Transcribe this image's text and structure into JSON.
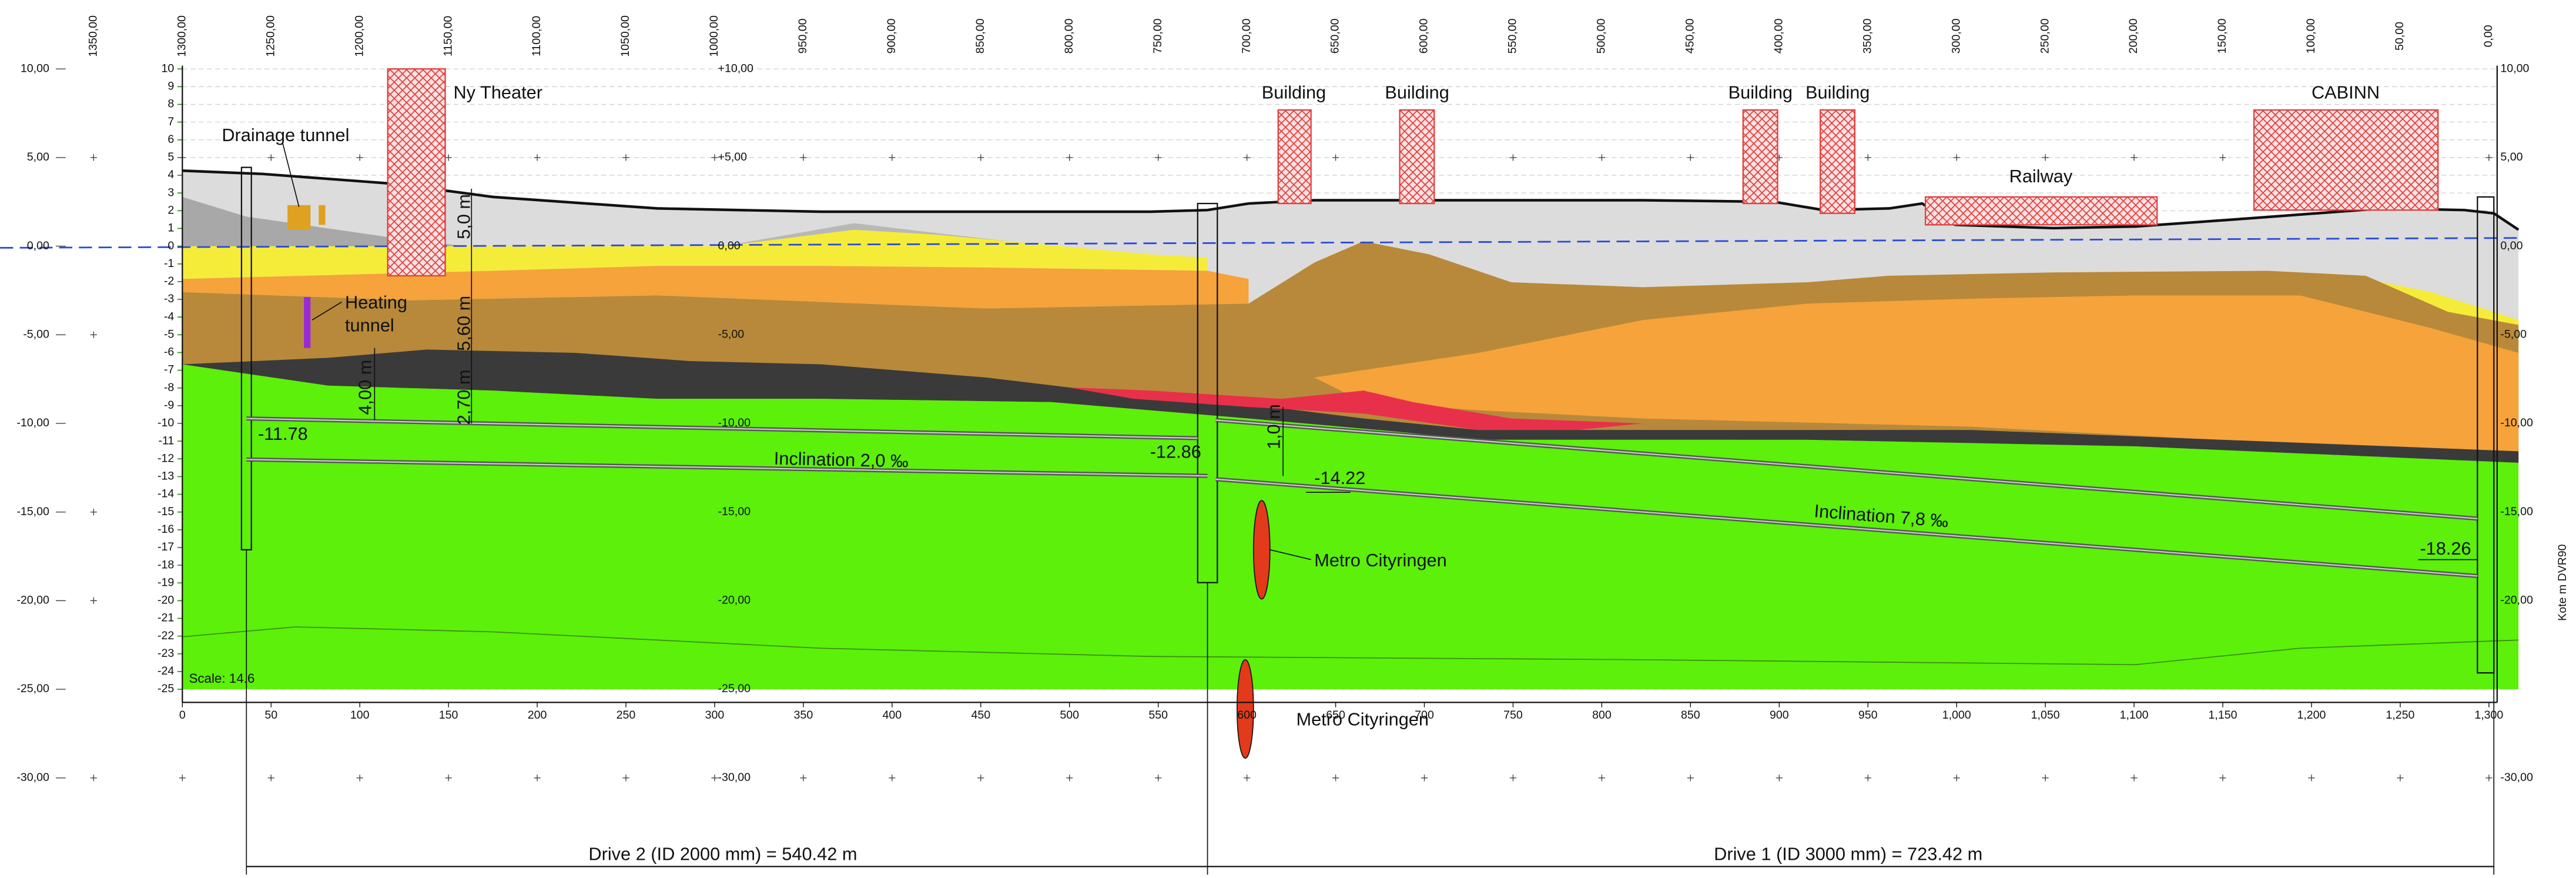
{
  "top_axis": {
    "labels": [
      "1350,00",
      "1300,00",
      "1250,00",
      "1200,00",
      "1150,00",
      "1100,00",
      "1050,00",
      "1000,00",
      "950,00",
      "900,00",
      "850,00",
      "800,00",
      "750,00",
      "700,00",
      "650,00",
      "600,00",
      "550,00",
      "500,00",
      "450,00",
      "400,00",
      "350,00",
      "300,00",
      "250,00",
      "200,00",
      "150,00",
      "100,00",
      "50,00",
      "0,00"
    ]
  },
  "left_axis": {
    "labels": [
      "10,00",
      "5,00",
      "0,00",
      "-5,00",
      "-10,00",
      "-15,00",
      "-20,00",
      "-25,00",
      "-30,00"
    ]
  },
  "right_axis": {
    "labels": [
      "10,00",
      "5,00",
      "0,00",
      "-5,00",
      "-10,00",
      "-15,00",
      "-20,00",
      "-30,00"
    ]
  },
  "inner_scale": {
    "labels": [
      "10",
      "9",
      "8",
      "7",
      "6",
      "5",
      "4",
      "3",
      "2",
      "1",
      "0",
      "-1",
      "-2",
      "-3",
      "-4",
      "-5",
      "-6",
      "-7",
      "-8",
      "-9",
      "-10",
      "-11",
      "-12",
      "-13",
      "-14",
      "-15",
      "-16",
      "-17",
      "-18",
      "-19",
      "-20",
      "-21",
      "-22",
      "-23",
      "-24",
      "-25"
    ]
  },
  "mid_axis": {
    "labels": [
      "+10,00",
      "+5,00",
      "0,00",
      "-5,00",
      "-10,00",
      "-15,00",
      "-20,00",
      "-25,00",
      "-30,00"
    ]
  },
  "bottom_axis": {
    "labels": [
      "0",
      "50",
      "100",
      "150",
      "200",
      "250",
      "300",
      "350",
      "400",
      "450",
      "500",
      "550",
      "600",
      "650",
      "700",
      "750",
      "800",
      "850",
      "900",
      "950",
      "1,000",
      "1,050",
      "1,100",
      "1,150",
      "1,200",
      "1,250",
      "1,300"
    ]
  },
  "annotations": {
    "ny_theater": "Ny Theater",
    "drainage_tunnel": "Drainage tunnel",
    "heating_tunnel_1": "Heating",
    "heating_tunnel_2": "tunnel",
    "buildings": [
      "Building",
      "Building",
      "Building",
      "Building"
    ],
    "railway": "Railway",
    "cabinn": "CABINN",
    "metro_1": "Metro Cityringen",
    "metro_2": "Metro Cityringen",
    "inclination_1": "Inclination 2,0 ‰",
    "inclination_2": "Inclination 7,8 ‰",
    "levels": [
      "-11.78",
      "-12.86",
      "-14.22",
      "-18.26"
    ],
    "depths": [
      "5,0 m",
      "5,60 m",
      "4,00 m",
      "2,70 m",
      "1,0 m"
    ]
  },
  "scale_note": "Scale: 14.6",
  "y_axis_title": "Kote m DVR90",
  "dimensions": {
    "drive_2": "Drive 2 (ID 2000 mm) = 540.42 m",
    "drive_1": "Drive 1 (ID 3000 mm) = 723.42 m"
  }
}
